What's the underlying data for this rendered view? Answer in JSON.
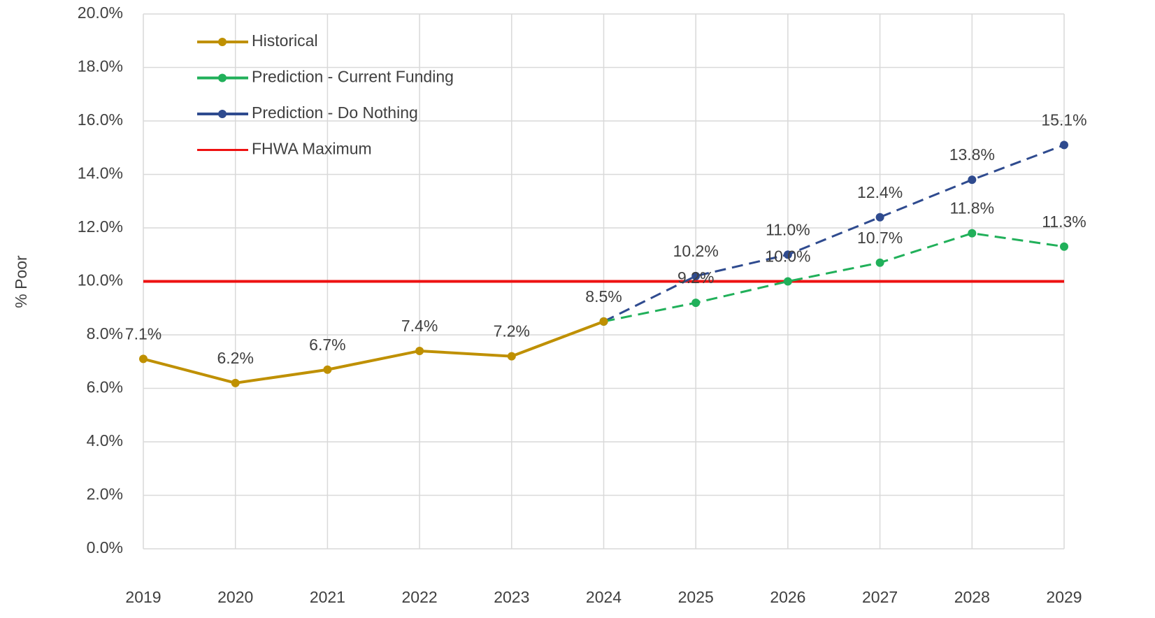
{
  "chart_data": {
    "type": "line",
    "y_label": "% Poor",
    "categories": [
      "2019",
      "2020",
      "2021",
      "2022",
      "2023",
      "2024",
      "2025",
      "2026",
      "2027",
      "2028",
      "2029"
    ],
    "series": [
      {
        "name": "Historical",
        "color": "#bf9000",
        "dashed": false,
        "marker": true,
        "values": [
          7.1,
          6.2,
          6.7,
          7.4,
          7.2,
          8.5,
          null,
          null,
          null,
          null,
          null
        ],
        "value_labels": [
          "7.1%",
          "6.2%",
          "6.7%",
          "7.4%",
          "7.2%",
          "8.5%",
          null,
          null,
          null,
          null,
          null
        ]
      },
      {
        "name": "Prediction - Current Funding",
        "color": "#21b05a",
        "dashed": true,
        "marker": true,
        "values": [
          null,
          null,
          null,
          null,
          null,
          8.5,
          9.2,
          10.0,
          10.7,
          11.8,
          11.3
        ],
        "value_labels": [
          null,
          null,
          null,
          null,
          null,
          null,
          "9.2%",
          "10.0%",
          "10.7%",
          "11.8%",
          "11.3%"
        ]
      },
      {
        "name": "Prediction - Do Nothing",
        "color": "#2f4b8f",
        "dashed": true,
        "marker": true,
        "values": [
          null,
          null,
          null,
          null,
          null,
          8.5,
          10.2,
          11.0,
          12.4,
          13.8,
          15.1
        ],
        "value_labels": [
          null,
          null,
          null,
          null,
          null,
          null,
          "10.2%",
          "11.0%",
          "12.4%",
          "13.8%",
          "15.1%"
        ]
      },
      {
        "name": "FHWA Maximum",
        "color": "#ee1111",
        "dashed": false,
        "marker": false,
        "values": [
          10,
          10,
          10,
          10,
          10,
          10,
          10,
          10,
          10,
          10,
          10
        ]
      }
    ],
    "ylim": [
      0,
      20
    ],
    "yticks": [
      {
        "value": 0,
        "label": "0.0%"
      },
      {
        "value": 2,
        "label": "2.0%"
      },
      {
        "value": 4,
        "label": "4.0%"
      },
      {
        "value": 6,
        "label": "6.0%"
      },
      {
        "value": 8,
        "label": "8.0%"
      },
      {
        "value": 10,
        "label": "10.0%"
      },
      {
        "value": 12,
        "label": "12.0%"
      },
      {
        "value": 14,
        "label": "14.0%"
      },
      {
        "value": 16,
        "label": "16.0%"
      },
      {
        "value": 18,
        "label": "18.0%"
      },
      {
        "value": 20,
        "label": "20.0%"
      }
    ],
    "grid": true,
    "legend": "top-left"
  }
}
